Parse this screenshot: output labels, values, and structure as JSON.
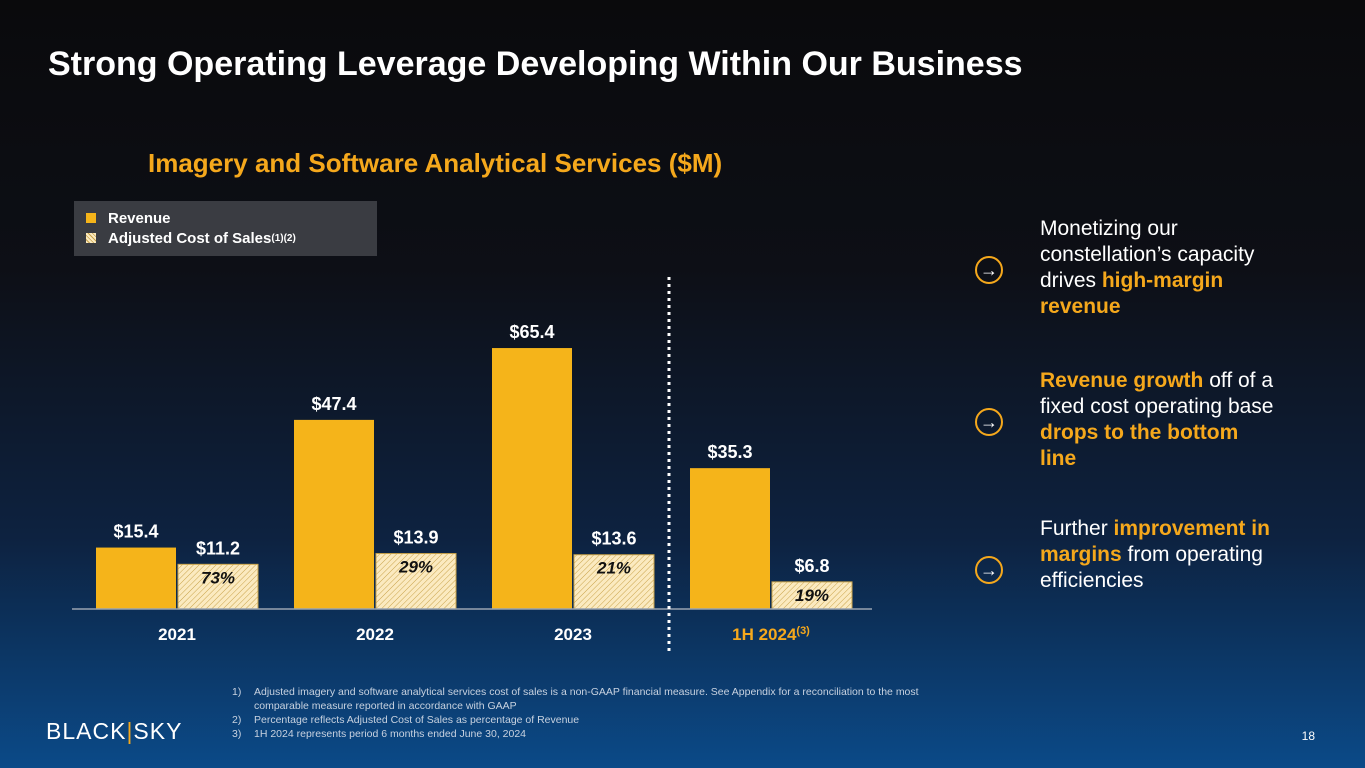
{
  "title": "Strong Operating Leverage Developing Within Our Business",
  "chart_data": {
    "type": "bar",
    "title": "Imagery and Software Analytical Services ($M)",
    "categories": [
      "2021",
      "2022",
      "2023",
      "1H 2024"
    ],
    "category_superscripts": [
      "",
      "",
      "",
      "(3)"
    ],
    "series": [
      {
        "name": "Revenue",
        "values": [
          15.4,
          47.4,
          65.4,
          35.3
        ],
        "labels": [
          "$15.4",
          "$47.4",
          "$65.4",
          "$35.3"
        ],
        "color": "#f5b41a"
      },
      {
        "name": "Adjusted Cost of Sales",
        "name_superscript": "(1)(2)",
        "values": [
          11.2,
          13.9,
          13.6,
          6.8
        ],
        "labels": [
          "$11.2",
          "$13.9",
          "$13.6",
          "$6.8"
        ],
        "percent_labels": [
          "73%",
          "29%",
          "21%",
          "19%"
        ],
        "color": "#fbeac0",
        "pattern": "hatched"
      }
    ],
    "ylim": [
      0,
      70
    ],
    "grid": false,
    "legend": "top-left",
    "divider_before": "1H 2024"
  },
  "bullets": [
    {
      "parts": [
        {
          "t": "Monetizing our constellation’s capacity drives ",
          "h": false
        },
        {
          "t": "high-margin revenue",
          "h": true
        }
      ]
    },
    {
      "parts": [
        {
          "t": "Revenue growth",
          "h": true
        },
        {
          "t": " off of a fixed cost operating base ",
          "h": false
        },
        {
          "t": "drops to the bottom line",
          "h": true
        }
      ]
    },
    {
      "parts": [
        {
          "t": "Further ",
          "h": false
        },
        {
          "t": "improvement in margins",
          "h": true
        },
        {
          "t": " from operating efficiencies",
          "h": false
        }
      ]
    }
  ],
  "notes": [
    {
      "n": "1)",
      "t": "Adjusted imagery and software analytical services cost of sales is a non-GAAP financial measure. See Appendix for a reconciliation to the most comparable measure reported in accordance with GAAP"
    },
    {
      "n": "2)",
      "t": "Percentage reflects Adjusted Cost of Sales as percentage of Revenue"
    },
    {
      "n": "3)",
      "t": "1H 2024 represents period 6 months ended June 30, 2024"
    }
  ],
  "logo": {
    "left": "BLACK",
    "right": "SKY"
  },
  "page_number": "18"
}
